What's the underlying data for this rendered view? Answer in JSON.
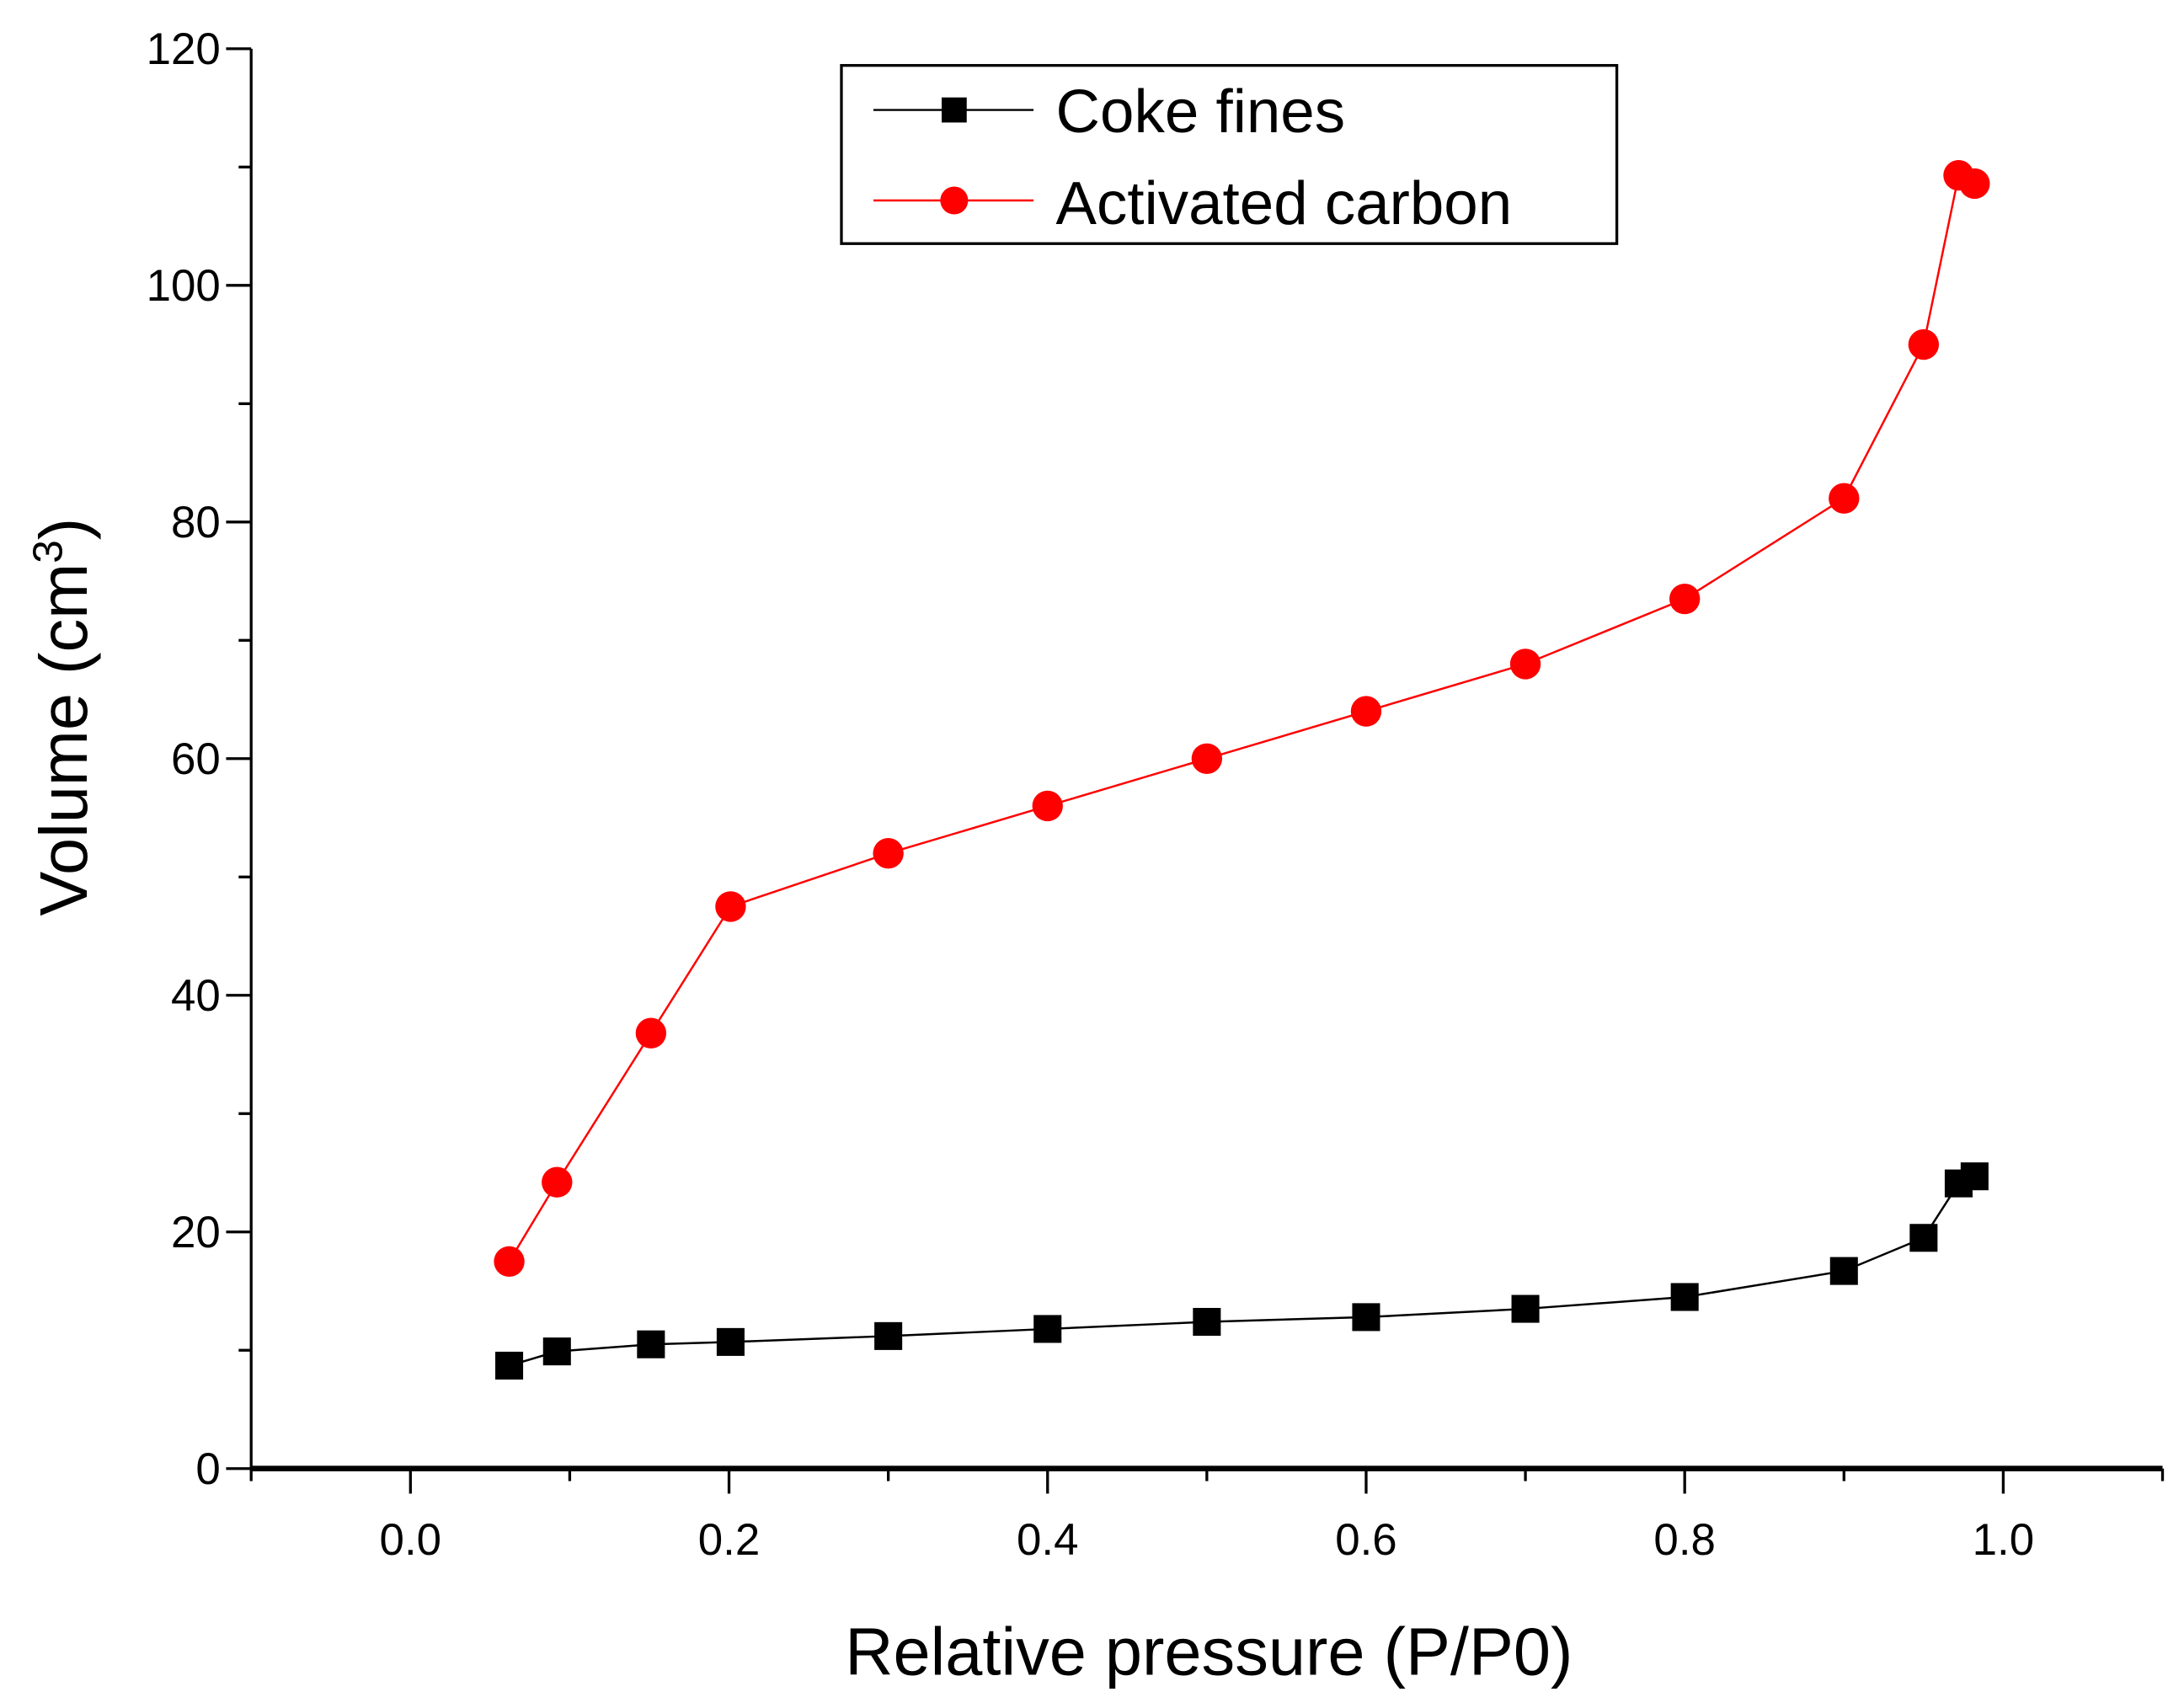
{
  "chart_data": {
    "type": "line",
    "title": "",
    "xlabel": "Relative pressure (P/P0)",
    "ylabel_main": "Volume (cm",
    "ylabel_sup": "3",
    "ylabel_close": ")",
    "xlim": [
      -0.1,
      1.1
    ],
    "ylim": [
      0,
      120
    ],
    "xticks": [
      0.0,
      0.2,
      0.4,
      0.6,
      0.8,
      1.0
    ],
    "xtick_labels": [
      "0.0",
      "0.2",
      "0.4",
      "0.6",
      "0.8",
      "1.0"
    ],
    "yticks": [
      0,
      20,
      40,
      60,
      80,
      100,
      120
    ],
    "ytick_labels": [
      "0",
      "20",
      "40",
      "60",
      "80",
      "100",
      "120"
    ],
    "grid": false,
    "legend_position": "top-center",
    "series": [
      {
        "name": "Coke fines",
        "color": "#000000",
        "marker": "square",
        "x": [
          0.062,
          0.092,
          0.151,
          0.201,
          0.3,
          0.4,
          0.5,
          0.6,
          0.7,
          0.8,
          0.9,
          0.95,
          0.972,
          0.982
        ],
        "y": [
          8.7,
          9.9,
          10.5,
          10.7,
          11.2,
          11.8,
          12.4,
          12.8,
          13.5,
          14.5,
          16.7,
          19.5,
          24.1,
          24.7
        ]
      },
      {
        "name": "Activated carbon",
        "color": "#ff0000",
        "marker": "circle",
        "x": [
          0.062,
          0.092,
          0.151,
          0.201,
          0.3,
          0.4,
          0.5,
          0.6,
          0.7,
          0.8,
          0.9,
          0.95,
          0.972,
          0.982
        ],
        "y": [
          17.5,
          24.2,
          36.8,
          47.5,
          52.0,
          56.0,
          60.0,
          64.0,
          68.0,
          73.5,
          82.0,
          95.0,
          109.3,
          108.6
        ]
      }
    ]
  }
}
